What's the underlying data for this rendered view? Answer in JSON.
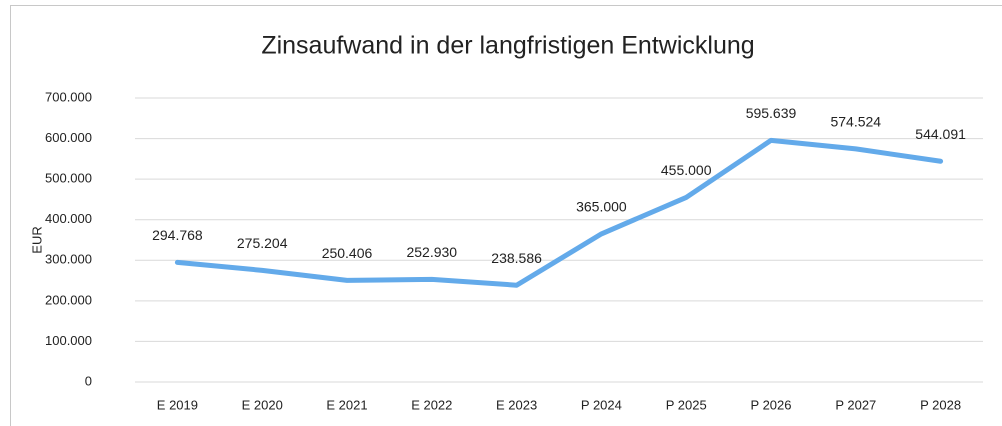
{
  "chart_data": {
    "type": "line",
    "title": "Zinsaufwand in der langfristigen Entwicklung",
    "ylabel": "EUR",
    "categories": [
      "E 2019",
      "E 2020",
      "E 2021",
      "E 2022",
      "E 2023",
      "P 2024",
      "P 2025",
      "P 2026",
      "P 2027",
      "P 2028"
    ],
    "values": [
      294768,
      275204,
      250406,
      252930,
      238586,
      365000,
      455000,
      595639,
      574524,
      544091
    ],
    "value_labels": [
      "294.768",
      "275.204",
      "250.406",
      "252.930",
      "238.586",
      "365.000",
      "455.000",
      "595.639",
      "574.524",
      "544.091"
    ],
    "color": "#63aaea",
    "ylim": [
      0,
      700000
    ],
    "yticks": [
      0,
      {
        "value": 100000,
        "label": "100.000"
      },
      {
        "value": 200000,
        "label": "200.000"
      },
      {
        "value": 300000,
        "label": "300.000"
      },
      {
        "value": 400000,
        "label": "400.000"
      },
      {
        "value": 500000,
        "label": "500.000"
      },
      {
        "value": 600000,
        "label": "600.000"
      },
      {
        "value": 700000,
        "label": "700.000"
      }
    ],
    "grid": true
  }
}
